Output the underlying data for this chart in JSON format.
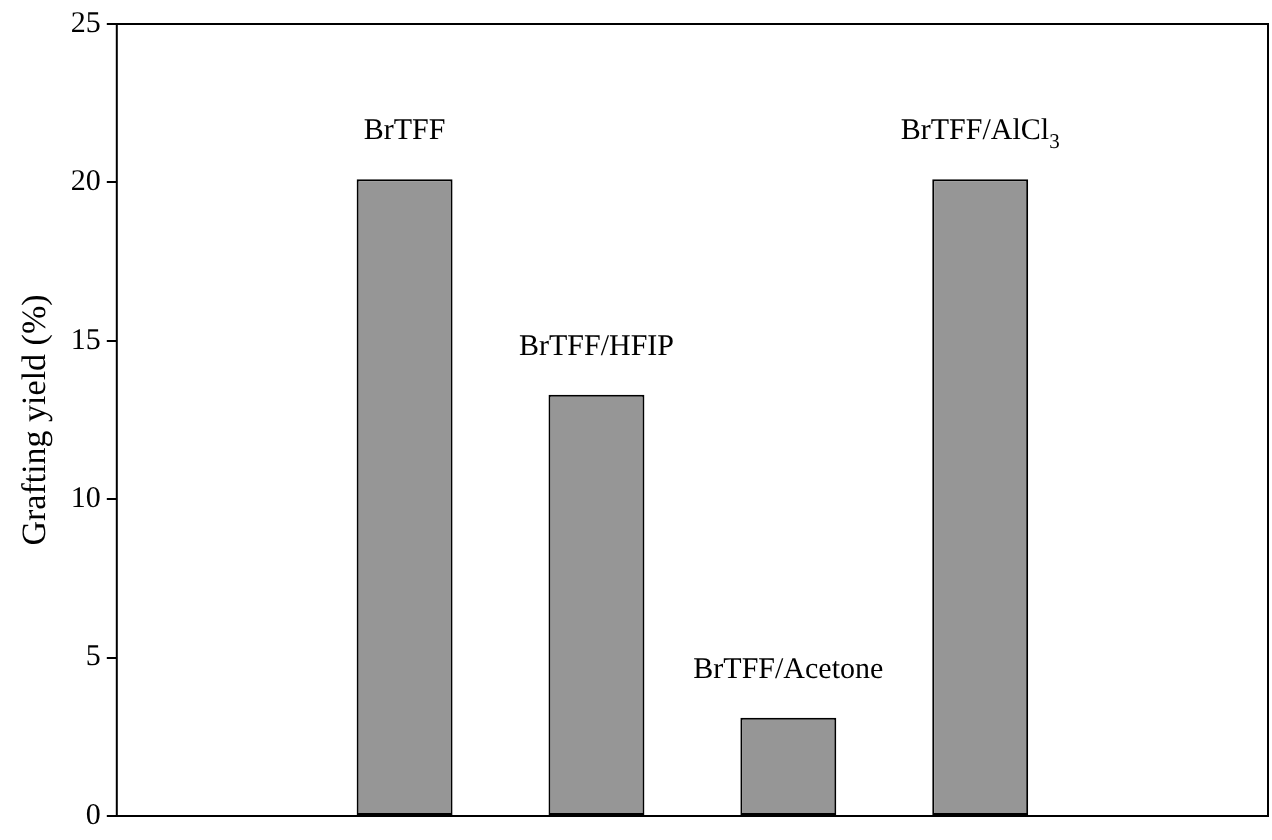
{
  "chart_data": {
    "type": "bar",
    "ylabel": "Grafting yield (%)",
    "categories": [
      null,
      "BrTFF",
      "BrTFF/HFIP",
      "BrTFF/Acetone",
      "BrTFF/AlCl$_{3}$",
      null
    ],
    "values": [
      null,
      20.1,
      13.3,
      3.1,
      20.1,
      null
    ],
    "color": "#969696",
    "ylim": [
      0,
      25
    ],
    "yticks": [
      0,
      5,
      10,
      15,
      20,
      25
    ],
    "grid": false,
    "legend": false,
    "tick_labels": "y"
  }
}
